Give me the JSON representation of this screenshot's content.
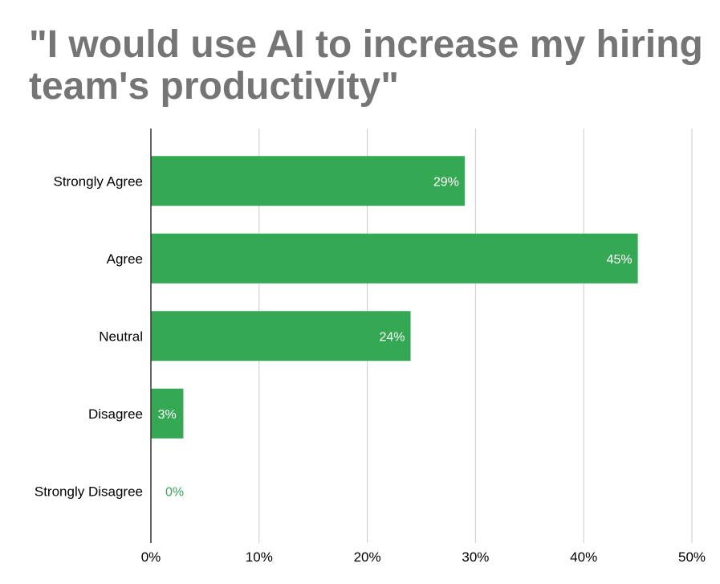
{
  "chart_data": {
    "type": "bar",
    "orientation": "horizontal",
    "title": "\"I would use AI to increase my hiring team's productivity\"",
    "categories": [
      "Strongly Agree",
      "Agree",
      "Neutral",
      "Disagree",
      "Strongly Disagree"
    ],
    "values": [
      29,
      45,
      24,
      3,
      0
    ],
    "data_labels": [
      "29%",
      "45%",
      "24%",
      "3%",
      "0%"
    ],
    "xlim": [
      0,
      50
    ],
    "x_ticks": [
      "0%",
      "10%",
      "20%",
      "30%",
      "40%",
      "50%"
    ],
    "xlabel": "",
    "ylabel": "",
    "grid": "vertical",
    "legend": "none",
    "colors": {
      "bar": "#34a853",
      "title": "#757575",
      "grid": "#cccccc",
      "axis": "#333333",
      "label_inside": "#ffffff",
      "label_outside": "#34a853",
      "text": "#000000"
    }
  }
}
